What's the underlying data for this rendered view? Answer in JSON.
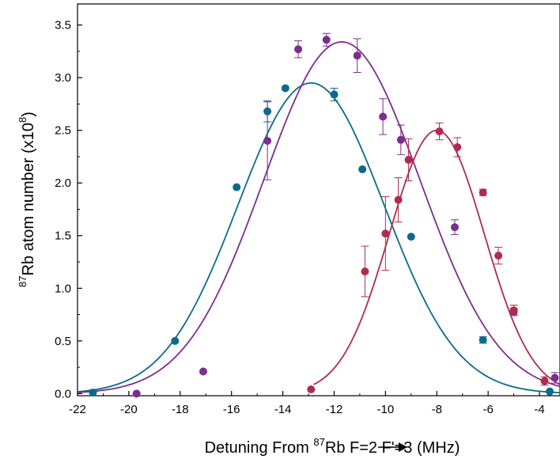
{
  "chart_data": {
    "type": "scatter",
    "title": "",
    "xlabel_parts": {
      "pre": "Detuning From ",
      "sup": "87",
      "mid": "Rb F=2",
      "post": "F'=3 (MHz)"
    },
    "ylabel_parts": {
      "sup": "87",
      "pre": "Rb atom number (x10",
      "exp": "8",
      "post": ")"
    },
    "xlim": [
      -22,
      -3.2
    ],
    "ylim": [
      -0.02,
      3.7
    ],
    "xticks": [
      -22,
      -20,
      -18,
      -16,
      -14,
      -12,
      -10,
      -8,
      -6,
      -4
    ],
    "xtick_labels": [
      "-22",
      "-20",
      "-18",
      "-16",
      "-14",
      "-12",
      "-10",
      "-8",
      "-6",
      "-4"
    ],
    "yticks": [
      0.0,
      0.5,
      1.0,
      1.5,
      2.0,
      2.5,
      3.0,
      3.5
    ],
    "ytick_labels": [
      "0.0",
      "0.5",
      "1.0",
      "1.5",
      "2.0",
      "2.5",
      "3.0",
      "3.5"
    ],
    "grid": false,
    "legend": "none",
    "series": [
      {
        "color": "#0b6a8c",
        "points": [
          {
            "x": -21.4,
            "y": 0.01,
            "err": 0
          },
          {
            "x": -18.2,
            "y": 0.5,
            "err": 0
          },
          {
            "x": -15.8,
            "y": 1.96,
            "err": 0
          },
          {
            "x": -14.6,
            "y": 2.68,
            "err": 0.1
          },
          {
            "x": -13.9,
            "y": 2.9,
            "err": 0
          },
          {
            "x": -12.0,
            "y": 2.84,
            "err": 0.06
          },
          {
            "x": -10.9,
            "y": 2.13,
            "err": 0
          },
          {
            "x": -9.0,
            "y": 1.49,
            "err": 0
          },
          {
            "x": -6.2,
            "y": 0.51,
            "err": 0.03
          },
          {
            "x": -3.6,
            "y": 0.02,
            "err": 0
          }
        ],
        "fit": {
          "a": 2.95,
          "x0": -12.9,
          "sigma": 2.85
        }
      },
      {
        "color": "#7b2e8e",
        "points": [
          {
            "x": -19.7,
            "y": 0.0,
            "err": 0
          },
          {
            "x": -17.1,
            "y": 0.21,
            "err": 0
          },
          {
            "x": -14.6,
            "y": 2.4,
            "err": 0.37
          },
          {
            "x": -13.4,
            "y": 3.27,
            "err": 0.08
          },
          {
            "x": -12.3,
            "y": 3.36,
            "err": 0.06
          },
          {
            "x": -11.1,
            "y": 3.21,
            "err": 0.16
          },
          {
            "x": -10.1,
            "y": 2.63,
            "err": 0.17
          },
          {
            "x": -9.4,
            "y": 2.41,
            "err": 0.14
          },
          {
            "x": -7.3,
            "y": 1.58,
            "err": 0.07
          },
          {
            "x": -5.0,
            "y": 0.78,
            "err": 0.03
          },
          {
            "x": -3.4,
            "y": 0.15,
            "err": 0.05
          }
        ],
        "fit": {
          "a": 3.34,
          "x0": -11.7,
          "sigma": 3.05
        }
      },
      {
        "color": "#b02b4c",
        "points": [
          {
            "x": -12.9,
            "y": 0.04,
            "err": 0
          },
          {
            "x": -10.8,
            "y": 1.16,
            "err": 0.24
          },
          {
            "x": -10.0,
            "y": 1.52,
            "err": 0.35
          },
          {
            "x": -9.5,
            "y": 1.84,
            "err": 0.21
          },
          {
            "x": -9.1,
            "y": 2.22,
            "err": 0.2
          },
          {
            "x": -7.9,
            "y": 2.49,
            "err": 0.08
          },
          {
            "x": -7.2,
            "y": 2.34,
            "err": 0.09
          },
          {
            "x": -6.2,
            "y": 1.91,
            "err": 0.03
          },
          {
            "x": -5.6,
            "y": 1.31,
            "err": 0.08
          },
          {
            "x": -5.0,
            "y": 0.79,
            "err": 0.05
          },
          {
            "x": -3.8,
            "y": 0.12,
            "err": 0.04
          }
        ],
        "fit": {
          "a": 2.5,
          "x0": -8.0,
          "sigma": 1.85,
          "xmin": -12.8
        }
      }
    ]
  }
}
